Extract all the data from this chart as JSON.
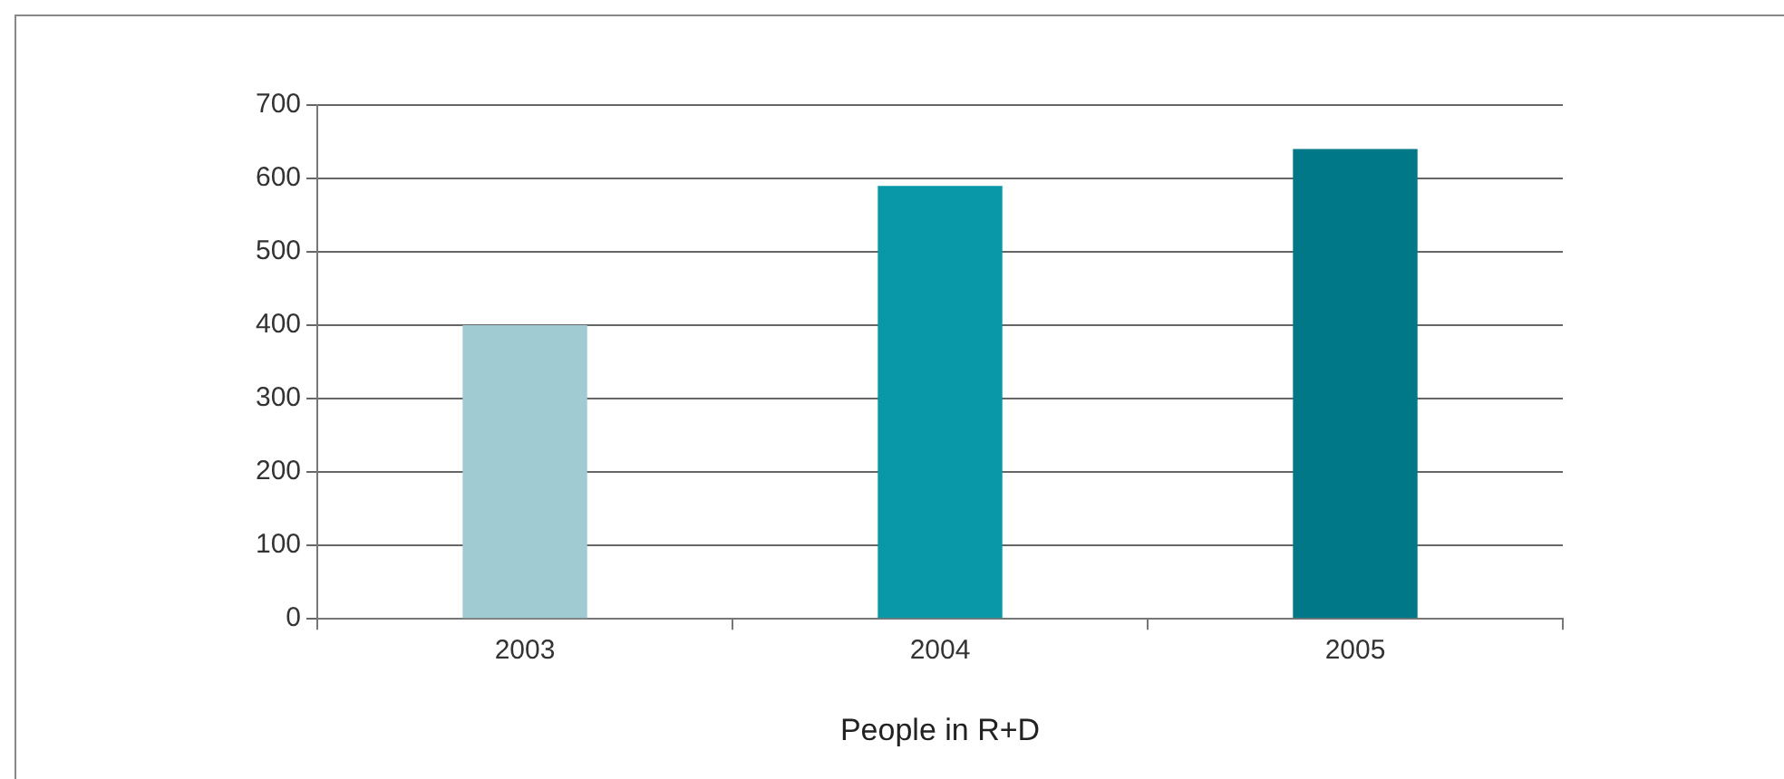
{
  "chart_data": {
    "type": "bar",
    "xlabel": "People in R+D",
    "categories": [
      "2003",
      "2004",
      "2005"
    ],
    "series": [
      {
        "colors": [
          "#a0cbd3",
          "#0898a8",
          "#007888"
        ],
        "values": [
          400,
          590,
          640
        ]
      }
    ],
    "ylim": [
      0,
      700
    ],
    "yticks": [
      0,
      100,
      200,
      300,
      400,
      500,
      600,
      700
    ],
    "grid": "y",
    "legend": false
  }
}
